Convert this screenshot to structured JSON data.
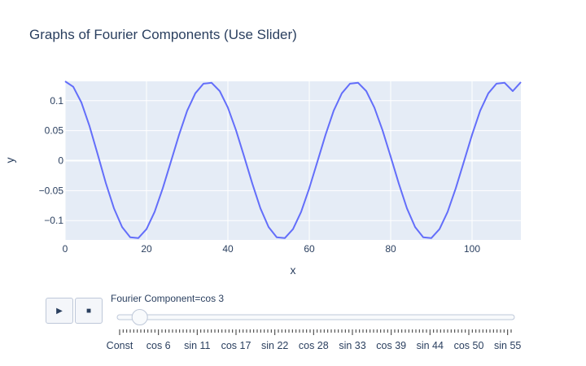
{
  "title": "Graphs of Fourier Components (Use Slider)",
  "colors": {
    "line": "#636efa",
    "plot_bg": "#e5ecf6",
    "text": "#2a3f5f",
    "grid": "#ffffff"
  },
  "chart_data": {
    "type": "line",
    "title": "Graphs of Fourier Components (Use Slider)",
    "xlabel": "x",
    "ylabel": "y",
    "xlim": [
      0,
      112
    ],
    "ylim": [
      -0.1323,
      0.1323
    ],
    "xticks": [
      0,
      20,
      40,
      60,
      80,
      100
    ],
    "xtick_labels": [
      "0",
      "20",
      "40",
      "60",
      "80",
      "100"
    ],
    "yticks": [
      0.1,
      0.05,
      0,
      -0.05,
      -0.1
    ],
    "ytick_labels": [
      "0.1",
      "0.05",
      "0",
      "−0.05",
      "−0.1"
    ],
    "grid": true,
    "series": [
      {
        "x": [
          0,
          2,
          4,
          6,
          8,
          10,
          12,
          14,
          16,
          18,
          20,
          22,
          24,
          26,
          28,
          30,
          32,
          34,
          36,
          38,
          40,
          42,
          44,
          46,
          48,
          50,
          52,
          54,
          56,
          58,
          60,
          62,
          64,
          66,
          68,
          70,
          72,
          74,
          76,
          78,
          80,
          82,
          84,
          86,
          88,
          90,
          92,
          94,
          96,
          98,
          100,
          102,
          104,
          106,
          108,
          110,
          112
        ],
        "y": [
          0.1323,
          0.1232,
          0.097,
          0.0575,
          0.0106,
          -0.0373,
          -0.0795,
          -0.1107,
          -0.128,
          -0.1292,
          -0.1143,
          -0.0854,
          -0.046,
          -0.0016,
          0.0431,
          0.0833,
          0.1124,
          0.1283,
          0.1299,
          0.116,
          0.0885,
          0.0506,
          0.0067,
          -0.0383,
          -0.0796,
          -0.1107,
          -0.128,
          -0.1292,
          -0.1143,
          -0.0854,
          -0.046,
          -0.0016,
          0.0431,
          0.0833,
          0.1124,
          0.1283,
          0.1299,
          0.116,
          0.0885,
          0.0506,
          0.0067,
          -0.0383,
          -0.0796,
          -0.1107,
          -0.128,
          -0.1292,
          -0.1143,
          -0.0854,
          -0.046,
          -0.0016,
          0.0431,
          0.0833,
          0.1124,
          0.1283,
          0.1299,
          0.116,
          0.131
        ]
      }
    ]
  },
  "slider": {
    "label": "Fourier Component=cos 3",
    "current_index": 2,
    "step_count": 112,
    "tick_labels": [
      "Const",
      "cos 6",
      "sin 11",
      "cos 17",
      "sin 22",
      "cos 28",
      "sin 33",
      "cos 39",
      "sin 44",
      "cos 50",
      "sin 55"
    ],
    "play_icon": "play-icon",
    "stop_icon": "stop-icon"
  }
}
